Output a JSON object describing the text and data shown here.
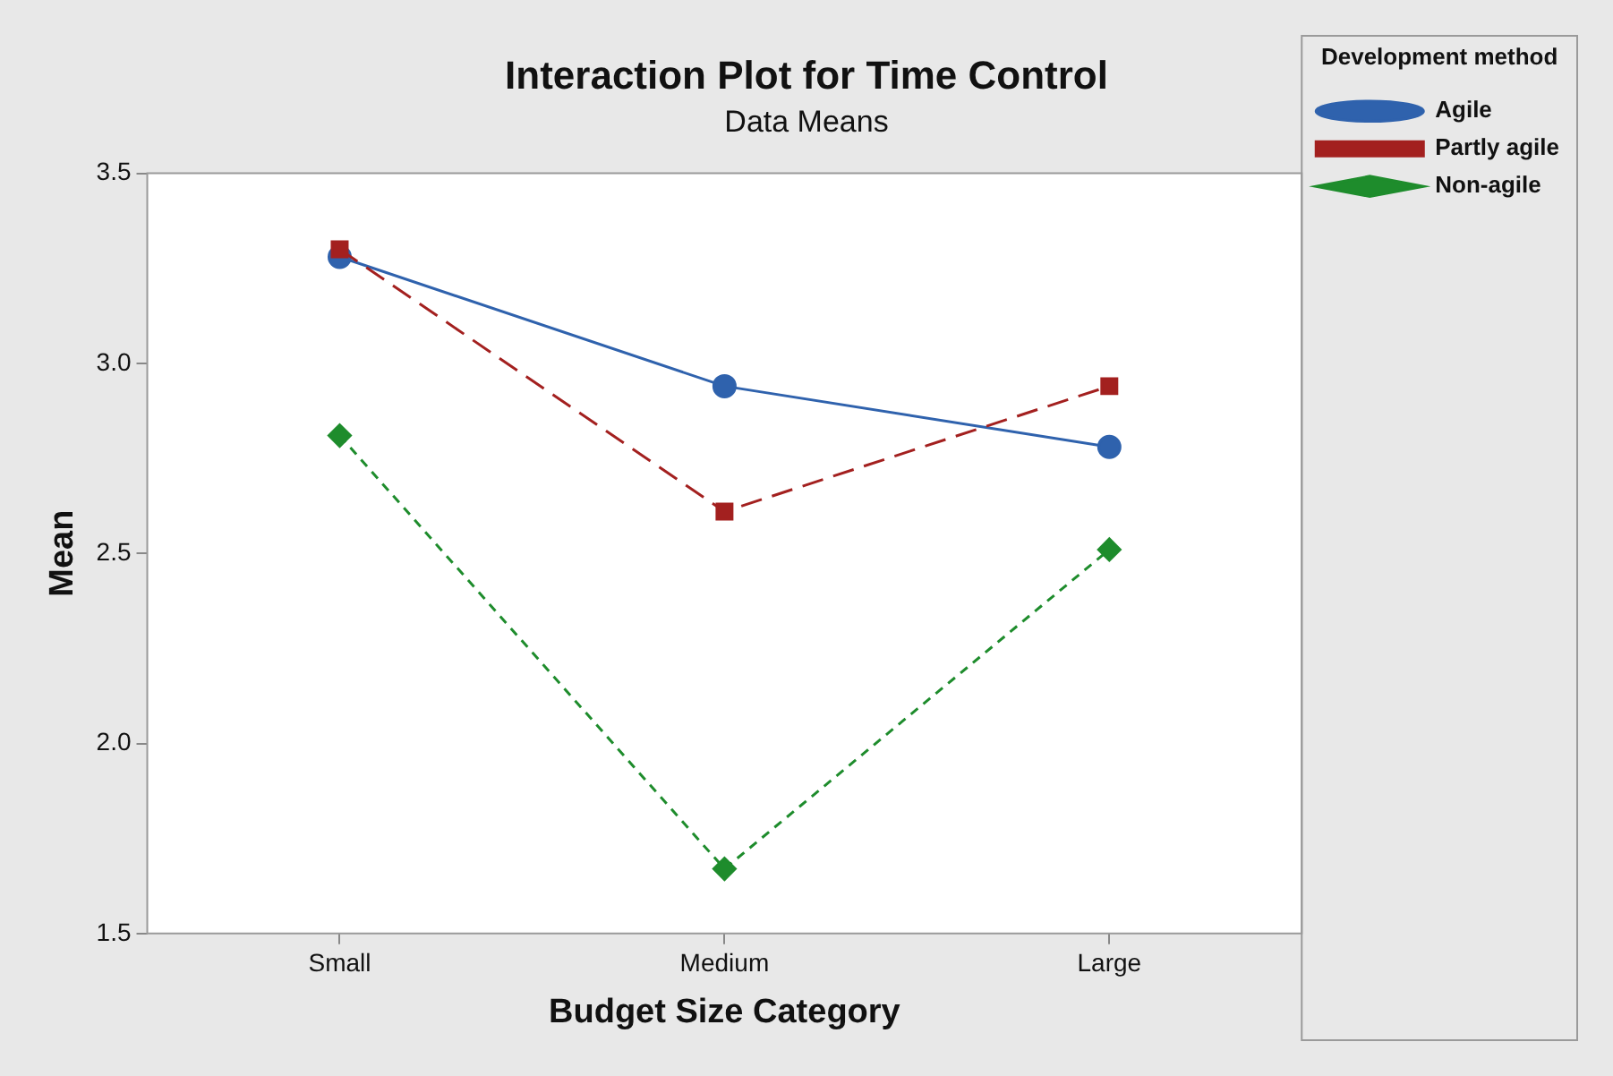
{
  "chart_data": {
    "type": "line",
    "title": "Interaction Plot for Time Control",
    "subtitle": "Data Means",
    "xlabel": "Budget Size Category",
    "ylabel": "Mean",
    "legend_title": "Development method",
    "categories": [
      "Small",
      "Medium",
      "Large"
    ],
    "series": [
      {
        "name": "Agile",
        "color": "#2f62ad",
        "marker": "circle",
        "line_style": "solid",
        "values": [
          3.28,
          2.94,
          2.78
        ]
      },
      {
        "name": "Partly agile",
        "color": "#a3201f",
        "marker": "square",
        "line_style": "dashed",
        "values": [
          3.3,
          2.61,
          2.94
        ]
      },
      {
        "name": "Non-agile",
        "color": "#1e8c2c",
        "marker": "diamond",
        "line_style": "dotted",
        "values": [
          2.81,
          1.67,
          2.51
        ]
      }
    ],
    "ylim": [
      1.5,
      3.5
    ],
    "yticks": [
      {
        "value": 1.5,
        "label": "1.5"
      },
      {
        "value": 2,
        "label": "2.0"
      },
      {
        "value": 2.5,
        "label": "2.5"
      },
      {
        "value": 3,
        "label": "3.0"
      },
      {
        "value": 3.5,
        "label": "3.5"
      }
    ],
    "grid": false,
    "legend": "top right"
  }
}
